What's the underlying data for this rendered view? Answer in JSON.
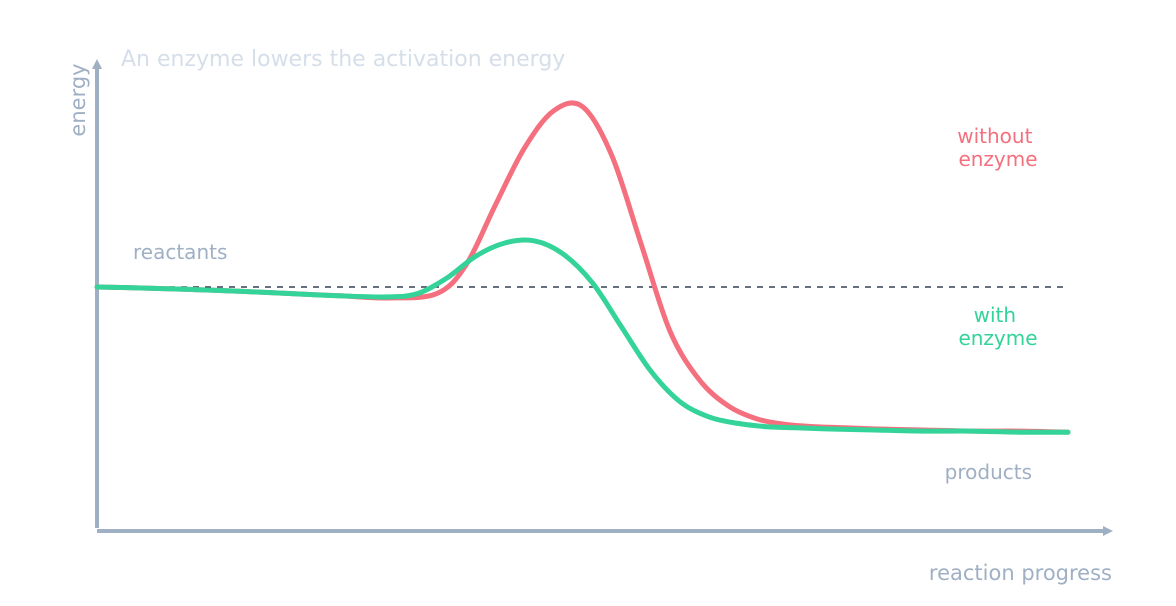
{
  "chart_data": {
    "type": "line",
    "title": "An enzyme lowers the activation energy",
    "xlabel": "reaction progress",
    "ylabel": "energy",
    "grid": false,
    "legend": "inline labels at right",
    "reference_line": {
      "name": "reactants level",
      "y": 0,
      "style": "dashed"
    },
    "annotations": {
      "reactants": "reactants",
      "products": "products"
    },
    "series": [
      {
        "key": "without",
        "label_lines": [
          "without",
          "enzyme"
        ],
        "color": "#f4707f",
        "x": [
          0,
          0.05,
          0.1,
          0.15,
          0.2,
          0.25,
          0.3,
          0.35,
          0.38,
          0.41,
          0.44,
          0.47,
          0.5,
          0.53,
          0.56,
          0.59,
          0.62,
          0.65,
          0.68,
          0.71,
          0.74,
          0.77,
          0.8,
          0.85,
          0.9,
          0.95,
          1
        ],
        "y": [
          0,
          -0.005,
          -0.012,
          -0.02,
          -0.03,
          -0.04,
          -0.05,
          -0.03,
          0.1,
          0.37,
          0.63,
          0.8,
          0.82,
          0.6,
          0.2,
          -0.2,
          -0.42,
          -0.54,
          -0.6,
          -0.625,
          -0.635,
          -0.64,
          -0.645,
          -0.65,
          -0.655,
          -0.655,
          -0.66
        ]
      },
      {
        "key": "with",
        "label_lines": [
          "with",
          "enzyme"
        ],
        "color": "#34d399",
        "x": [
          0,
          0.05,
          0.1,
          0.15,
          0.2,
          0.25,
          0.3,
          0.33,
          0.36,
          0.39,
          0.42,
          0.45,
          0.48,
          0.51,
          0.54,
          0.57,
          0.6,
          0.63,
          0.66,
          0.69,
          0.72,
          0.75,
          0.8,
          0.85,
          0.9,
          0.95,
          1
        ],
        "y": [
          0,
          -0.005,
          -0.012,
          -0.02,
          -0.03,
          -0.04,
          -0.045,
          -0.03,
          0.04,
          0.14,
          0.2,
          0.21,
          0.15,
          0.02,
          -0.18,
          -0.38,
          -0.52,
          -0.59,
          -0.62,
          -0.635,
          -0.64,
          -0.645,
          -0.65,
          -0.655,
          -0.655,
          -0.66,
          -0.66
        ]
      }
    ]
  }
}
